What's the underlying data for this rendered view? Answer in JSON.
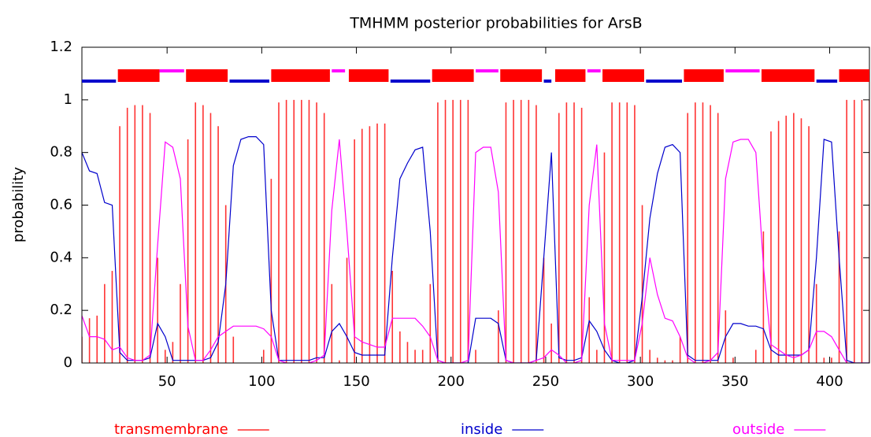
{
  "chart_data": {
    "type": "line",
    "title": "TMHMM posterior probabilities for ArsB",
    "y_label": "probability",
    "xlim": [
      5,
      421
    ],
    "xticks": [
      50,
      100,
      150,
      200,
      250,
      300,
      350,
      400
    ],
    "ylim": [
      0,
      1.2
    ],
    "yticks": [
      0,
      0.2,
      0.4,
      0.6,
      0.8,
      1,
      1.2
    ],
    "grid": false,
    "legend": "bottom",
    "x": [
      5,
      9,
      13,
      17,
      21,
      25,
      29,
      33,
      37,
      41,
      45,
      49,
      53,
      57,
      61,
      65,
      69,
      73,
      77,
      81,
      85,
      89,
      93,
      97,
      101,
      105,
      109,
      113,
      117,
      121,
      125,
      129,
      133,
      137,
      141,
      145,
      149,
      153,
      157,
      161,
      165,
      169,
      173,
      177,
      181,
      185,
      189,
      193,
      197,
      201,
      205,
      209,
      213,
      217,
      221,
      225,
      229,
      233,
      237,
      241,
      245,
      249,
      253,
      257,
      261,
      265,
      269,
      273,
      277,
      281,
      285,
      289,
      293,
      297,
      301,
      305,
      309,
      313,
      317,
      321,
      325,
      329,
      333,
      337,
      341,
      345,
      349,
      353,
      357,
      361,
      365,
      369,
      373,
      377,
      381,
      385,
      389,
      393,
      397,
      401,
      405,
      409,
      413,
      417,
      421
    ],
    "series": [
      {
        "name": "transmembrane",
        "color": "#ff0000",
        "mark": "bar",
        "segments": [
          [
            24,
            46
          ],
          [
            60,
            82
          ],
          [
            105,
            136
          ],
          [
            146,
            167
          ],
          [
            190,
            212
          ],
          [
            226,
            248
          ],
          [
            255,
            271
          ],
          [
            280,
            302
          ],
          [
            323,
            344
          ],
          [
            364,
            392
          ],
          [
            405,
            421
          ]
        ],
        "values": [
          0.1,
          0.17,
          0.18,
          0.3,
          0.35,
          0.9,
          0.97,
          0.98,
          0.98,
          0.95,
          0.4,
          0.05,
          0.08,
          0.3,
          0.85,
          0.99,
          0.98,
          0.95,
          0.9,
          0.6,
          0.1,
          0,
          0,
          0,
          0.05,
          0.7,
          0.99,
          1,
          1,
          1,
          1,
          0.99,
          0.95,
          0.3,
          0.01,
          0.4,
          0.85,
          0.89,
          0.9,
          0.91,
          0.91,
          0.35,
          0.12,
          0.08,
          0.05,
          0.05,
          0.3,
          0.99,
          1,
          1,
          1,
          1,
          0.05,
          0,
          0,
          0.2,
          0.99,
          1,
          1,
          1,
          0.98,
          0.4,
          0.15,
          0.95,
          0.99,
          0.99,
          0.97,
          0.25,
          0.05,
          0.8,
          0.99,
          0.99,
          0.99,
          0.98,
          0.6,
          0.05,
          0.02,
          0.01,
          0.01,
          0.1,
          0.95,
          0.99,
          0.99,
          0.98,
          0.95,
          0.2,
          0.02,
          0,
          0,
          0.05,
          0.5,
          0.88,
          0.92,
          0.94,
          0.95,
          0.93,
          0.9,
          0.3,
          0.02,
          0.02,
          0.5,
          1,
          1,
          1,
          1
        ]
      },
      {
        "name": "inside",
        "color": "#0000cc",
        "mark": "line",
        "segments": [
          [
            5,
            23
          ],
          [
            83,
            104
          ],
          [
            168,
            189
          ],
          [
            249,
            253
          ],
          [
            303,
            322
          ],
          [
            393,
            404
          ]
        ],
        "values": [
          0.8,
          0.73,
          0.72,
          0.61,
          0.6,
          0.04,
          0.01,
          0.01,
          0.01,
          0.02,
          0.15,
          0.1,
          0.01,
          0.01,
          0.01,
          0.01,
          0.01,
          0.02,
          0.08,
          0.3,
          0.75,
          0.85,
          0.86,
          0.86,
          0.83,
          0.2,
          0.01,
          0.01,
          0.01,
          0.01,
          0.01,
          0.02,
          0.02,
          0.12,
          0.15,
          0.1,
          0.04,
          0.03,
          0.03,
          0.03,
          0.03,
          0.4,
          0.7,
          0.76,
          0.81,
          0.82,
          0.5,
          0.01,
          0,
          0,
          0,
          0,
          0.17,
          0.17,
          0.17,
          0.15,
          0.01,
          0,
          0,
          0,
          0.01,
          0.4,
          0.8,
          0.02,
          0.01,
          0.01,
          0.02,
          0.16,
          0.12,
          0.05,
          0.01,
          0,
          0,
          0.01,
          0.25,
          0.55,
          0.72,
          0.82,
          0.83,
          0.8,
          0.03,
          0.01,
          0.01,
          0.01,
          0.01,
          0.1,
          0.15,
          0.15,
          0.14,
          0.14,
          0.13,
          0.05,
          0.03,
          0.03,
          0.03,
          0.03,
          0.05,
          0.4,
          0.85,
          0.84,
          0.4,
          0.01,
          0,
          0,
          0
        ]
      },
      {
        "name": "outside",
        "color": "#ff00ff",
        "mark": "line",
        "segments": [
          [
            46,
            59
          ],
          [
            137,
            144
          ],
          [
            213,
            225
          ],
          [
            272,
            279
          ],
          [
            345,
            363
          ]
        ],
        "values": [
          0.18,
          0.1,
          0.1,
          0.09,
          0.05,
          0.06,
          0.02,
          0.01,
          0.01,
          0.03,
          0.45,
          0.84,
          0.82,
          0.7,
          0.14,
          0.01,
          0.01,
          0.05,
          0.1,
          0.12,
          0.14,
          0.14,
          0.14,
          0.14,
          0.13,
          0.1,
          0.01,
          0,
          0,
          0,
          0,
          0.01,
          0.03,
          0.58,
          0.85,
          0.5,
          0.1,
          0.08,
          0.07,
          0.06,
          0.06,
          0.17,
          0.17,
          0.17,
          0.17,
          0.14,
          0.1,
          0.01,
          0,
          0,
          0,
          0.01,
          0.8,
          0.82,
          0.82,
          0.65,
          0.01,
          0,
          0,
          0,
          0.01,
          0.02,
          0.05,
          0.03,
          0,
          0,
          0.01,
          0.6,
          0.83,
          0.15,
          0.01,
          0.01,
          0.01,
          0.01,
          0.15,
          0.4,
          0.26,
          0.17,
          0.16,
          0.1,
          0.02,
          0,
          0,
          0.01,
          0.04,
          0.7,
          0.84,
          0.85,
          0.85,
          0.8,
          0.37,
          0.07,
          0.05,
          0.03,
          0.02,
          0.03,
          0.05,
          0.12,
          0.12,
          0.1,
          0.05,
          0,
          0,
          0,
          0
        ]
      }
    ]
  }
}
